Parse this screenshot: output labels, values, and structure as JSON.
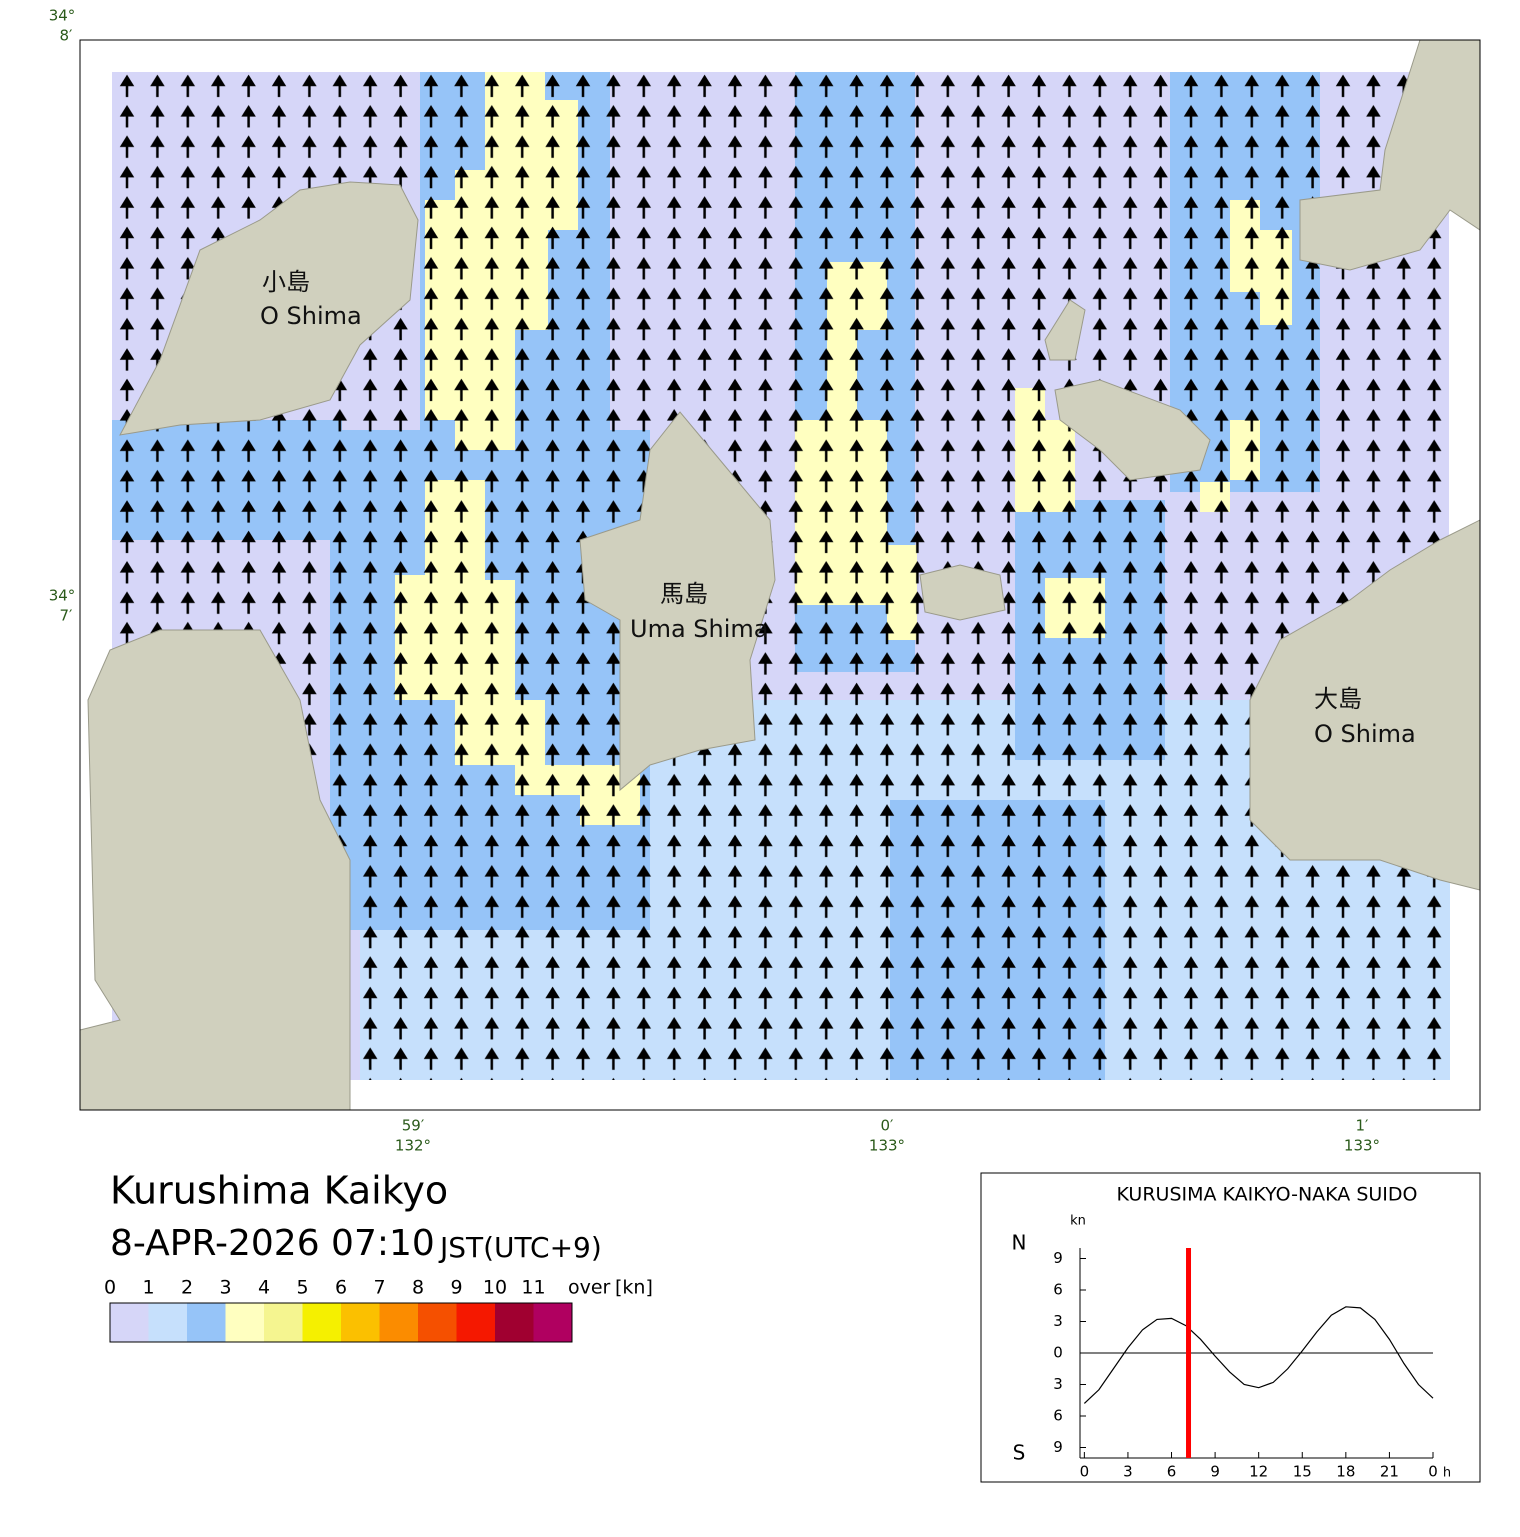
{
  "map": {
    "lat_ticks": [
      {
        "deg": "34°",
        "min": "8′"
      },
      {
        "deg": "34°",
        "min": "7′"
      }
    ],
    "lon_ticks": [
      {
        "min": "59′",
        "deg": "132°"
      },
      {
        "min": "0′",
        "deg": "133°"
      },
      {
        "min": "1′",
        "deg": "133°"
      }
    ],
    "islands": [
      {
        "ja": "小島",
        "en": "O Shima"
      },
      {
        "ja": "馬島",
        "en": "Uma Shima"
      },
      {
        "ja": "大島",
        "en": "O Shima"
      }
    ]
  },
  "header": {
    "title": "Kurushima Kaikyo",
    "datetime": "8-APR-2026 07:10",
    "timezone": "JST(UTC+9)"
  },
  "legend": {
    "labels": [
      "0",
      "1",
      "2",
      "3",
      "4",
      "5",
      "6",
      "7",
      "8",
      "9",
      "10",
      "11",
      "over"
    ],
    "unit": "[kn]",
    "colors": [
      "#d6d6f8",
      "#c6e0fc",
      "#96c4f8",
      "#ffffc0",
      "#f5f590",
      "#f5f000",
      "#fbc000",
      "#fb8c00",
      "#f55000",
      "#f51800",
      "#a00030",
      "#b00060"
    ]
  },
  "chart_data": {
    "type": "line",
    "title": "KURUSIMA KAIKYO-NAKA SUIDO",
    "ylabel": "kn",
    "north_label": "N",
    "south_label": "S",
    "xlabel": "h",
    "x": [
      0,
      1,
      2,
      3,
      4,
      5,
      6,
      7,
      8,
      9,
      10,
      11,
      12,
      13,
      14,
      15,
      16,
      17,
      18,
      19,
      20,
      21,
      22,
      23,
      24
    ],
    "series": [
      {
        "color": "#000000",
        "values": [
          -4.8,
          -3.5,
          -1.5,
          0.5,
          2.2,
          3.2,
          3.3,
          2.6,
          1.3,
          -0.3,
          -1.8,
          -3.0,
          -3.3,
          -2.8,
          -1.5,
          0.2,
          2.0,
          3.6,
          4.4,
          4.3,
          3.2,
          1.3,
          -1.0,
          -3.0,
          -4.3
        ]
      }
    ],
    "current_time": 7.17,
    "current_color": "#ff0000",
    "xlim": [
      -0.3,
      24
    ],
    "ylim": [
      -10,
      10
    ],
    "xticks": [
      0,
      3,
      6,
      9,
      12,
      15,
      18,
      21,
      {
        "value": 24,
        "label": "0"
      }
    ],
    "yticks": [
      9,
      6,
      3,
      0,
      {
        "value": -3,
        "label": "3"
      },
      {
        "value": -6,
        "label": "6"
      },
      {
        "value": -9,
        "label": "9"
      }
    ]
  }
}
